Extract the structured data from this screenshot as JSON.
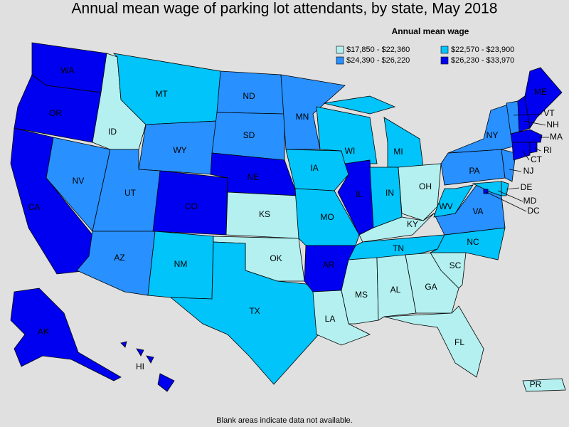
{
  "title": "Annual mean wage of parking lot attendants, by state, May 2018",
  "legend": {
    "title": "Annual mean wage",
    "bins": [
      {
        "label": "$17,850 - $22,360",
        "color": "#b4f0f0"
      },
      {
        "label": "$22,570 - $23,900",
        "color": "#00c4fa"
      },
      {
        "label": "$24,390 - $26,220",
        "color": "#2890ff"
      },
      {
        "label": "$26,230 - $33,970",
        "color": "#0000f0"
      }
    ]
  },
  "states": [
    {
      "abbr": "WA",
      "bin": 3
    },
    {
      "abbr": "OR",
      "bin": 3
    },
    {
      "abbr": "CA",
      "bin": 3
    },
    {
      "abbr": "NV",
      "bin": 2
    },
    {
      "abbr": "ID",
      "bin": 0
    },
    {
      "abbr": "MT",
      "bin": 1
    },
    {
      "abbr": "WY",
      "bin": 2
    },
    {
      "abbr": "UT",
      "bin": 2
    },
    {
      "abbr": "AZ",
      "bin": 2
    },
    {
      "abbr": "CO",
      "bin": 3
    },
    {
      "abbr": "NM",
      "bin": 1
    },
    {
      "abbr": "ND",
      "bin": 2
    },
    {
      "abbr": "SD",
      "bin": 2
    },
    {
      "abbr": "NE",
      "bin": 3
    },
    {
      "abbr": "KS",
      "bin": 0
    },
    {
      "abbr": "OK",
      "bin": 0
    },
    {
      "abbr": "TX",
      "bin": 1
    },
    {
      "abbr": "MN",
      "bin": 2
    },
    {
      "abbr": "IA",
      "bin": 1
    },
    {
      "abbr": "MO",
      "bin": 1
    },
    {
      "abbr": "AR",
      "bin": 3
    },
    {
      "abbr": "LA",
      "bin": 0
    },
    {
      "abbr": "WI",
      "bin": 1
    },
    {
      "abbr": "IL",
      "bin": 3
    },
    {
      "abbr": "MI",
      "bin": 1
    },
    {
      "abbr": "IN",
      "bin": 1
    },
    {
      "abbr": "OH",
      "bin": 0
    },
    {
      "abbr": "KY",
      "bin": 0
    },
    {
      "abbr": "TN",
      "bin": 1
    },
    {
      "abbr": "MS",
      "bin": 0
    },
    {
      "abbr": "AL",
      "bin": 0
    },
    {
      "abbr": "GA",
      "bin": 0
    },
    {
      "abbr": "FL",
      "bin": 0
    },
    {
      "abbr": "SC",
      "bin": 0
    },
    {
      "abbr": "NC",
      "bin": 1
    },
    {
      "abbr": "VA",
      "bin": 2
    },
    {
      "abbr": "WV",
      "bin": 1
    },
    {
      "abbr": "PA",
      "bin": 2
    },
    {
      "abbr": "NY",
      "bin": 2
    },
    {
      "abbr": "NJ",
      "bin": 2
    },
    {
      "abbr": "DE",
      "bin": 1
    },
    {
      "abbr": "MD",
      "bin": 1
    },
    {
      "abbr": "DC",
      "bin": 3
    },
    {
      "abbr": "VT",
      "bin": 2
    },
    {
      "abbr": "NH",
      "bin": 3
    },
    {
      "abbr": "ME",
      "bin": 3
    },
    {
      "abbr": "MA",
      "bin": 3
    },
    {
      "abbr": "CT",
      "bin": 3
    },
    {
      "abbr": "RI",
      "bin": 3
    },
    {
      "abbr": "AK",
      "bin": 3
    },
    {
      "abbr": "HI",
      "bin": 3
    },
    {
      "abbr": "PR",
      "bin": 0
    }
  ],
  "note": "Blank areas indicate data not available."
}
